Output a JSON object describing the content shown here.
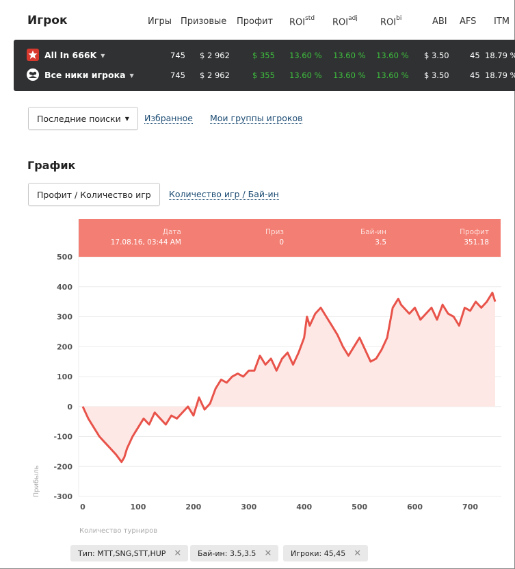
{
  "header": {
    "title": "Игрок",
    "columns": [
      {
        "label": "Игры",
        "sup": ""
      },
      {
        "label": "Призовые",
        "sup": ""
      },
      {
        "label": "Профит",
        "sup": ""
      },
      {
        "label": "ROI",
        "sup": "std"
      },
      {
        "label": "ROI",
        "sup": "adj"
      },
      {
        "label": "ROI",
        "sup": "bi"
      },
      {
        "label": "ABI",
        "sup": ""
      },
      {
        "label": "AFS",
        "sup": ""
      },
      {
        "label": "ITM",
        "sup": ""
      }
    ]
  },
  "players": [
    {
      "name": "All In 666K",
      "icon": "pokerstars-icon",
      "games": "745",
      "prize": "$ 2 962",
      "profit": "$ 355",
      "roi_std": "13.60 %",
      "roi_adj": "13.60 %",
      "roi_bi": "13.60 %",
      "abi": "$ 3.50",
      "afs": "45",
      "itm": "18.79 %"
    },
    {
      "name": "Все ники игрока",
      "icon": "group-icon",
      "games": "745",
      "prize": "$ 2 962",
      "profit": "$ 355",
      "roi_std": "13.60 %",
      "roi_adj": "13.60 %",
      "roi_bi": "13.60 %",
      "abi": "$ 3.50",
      "afs": "45",
      "itm": "18.79 %"
    }
  ],
  "search": {
    "recent_label": "Последние поиски",
    "favorites_label": "Избранное",
    "groups_label": "Мои группы игроков"
  },
  "graph": {
    "title": "График",
    "tab_active": "Профит / Количество игр",
    "tab_other": "Количество игр / Бай-ин"
  },
  "tooltip": {
    "date_label": "Дата",
    "date_value": "17.08.16, 03:44 AM",
    "prize_label": "Приз",
    "prize_value": "0",
    "buyin_label": "Бай-ин",
    "buyin_value": "3.5",
    "profit_label": "Профит",
    "profit_value": "351.18"
  },
  "filters": [
    {
      "label": "Тип: MTT,SNG,STT,HUP"
    },
    {
      "label": "Бай-ин: 3.5,3.5"
    },
    {
      "label": "Игроки: 45,45"
    }
  ],
  "colors": {
    "line": "#e8534a",
    "fill": "#fde8e6",
    "tooltip_bg": "#f37e73",
    "profit_green": "#3fbf3f",
    "dark_bar": "#2f3132"
  },
  "chart_data": {
    "type": "area",
    "xlabel": "Количество турниров",
    "ylabel": "Прибыль",
    "xlim": [
      0,
      750
    ],
    "ylim": [
      -300,
      500
    ],
    "xticks": [
      0,
      100,
      200,
      300,
      400,
      500,
      600,
      700
    ],
    "yticks": [
      -300,
      -200,
      -100,
      0,
      100,
      200,
      300,
      400,
      500
    ],
    "grid": true,
    "x": [
      0,
      10,
      20,
      30,
      40,
      50,
      60,
      70,
      75,
      80,
      90,
      100,
      110,
      120,
      130,
      140,
      150,
      160,
      170,
      180,
      190,
      200,
      210,
      220,
      230,
      240,
      250,
      260,
      270,
      280,
      290,
      300,
      310,
      320,
      330,
      340,
      350,
      360,
      370,
      380,
      390,
      400,
      405,
      410,
      420,
      430,
      440,
      450,
      460,
      470,
      480,
      490,
      500,
      510,
      520,
      530,
      540,
      550,
      560,
      570,
      575,
      580,
      590,
      600,
      610,
      620,
      630,
      640,
      650,
      660,
      670,
      680,
      690,
      700,
      710,
      720,
      730,
      740,
      745
    ],
    "values": [
      0,
      -40,
      -70,
      -100,
      -120,
      -140,
      -160,
      -185,
      -170,
      -140,
      -100,
      -70,
      -40,
      -60,
      -20,
      -40,
      -60,
      -30,
      -40,
      -20,
      0,
      -30,
      30,
      -10,
      10,
      60,
      90,
      80,
      100,
      110,
      100,
      120,
      120,
      170,
      140,
      160,
      120,
      160,
      180,
      140,
      180,
      230,
      300,
      270,
      310,
      330,
      300,
      270,
      240,
      200,
      170,
      200,
      230,
      190,
      150,
      160,
      190,
      230,
      330,
      360,
      340,
      330,
      310,
      330,
      290,
      310,
      330,
      290,
      340,
      310,
      300,
      270,
      330,
      320,
      350,
      330,
      350,
      380,
      350
    ]
  }
}
